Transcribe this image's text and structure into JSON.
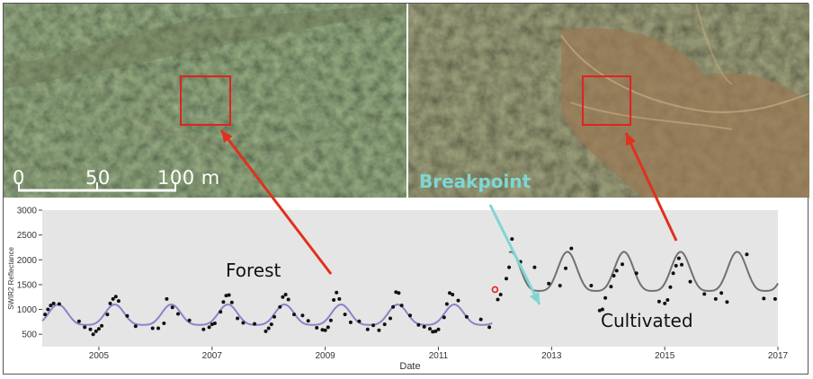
{
  "images": {
    "left_alt": "Satellite image of forest",
    "right_alt": "Satellite image of cultivated land"
  },
  "scale_bar": {
    "labels": [
      "0",
      "50",
      "100 m"
    ]
  },
  "annotations": {
    "forest": "Forest",
    "cultivated": "Cultivated",
    "breakpoint": "Breakpoint"
  },
  "colors": {
    "forest_fit": "#8c82c8",
    "cultivated_fit": "#707070",
    "arrow_red": "#e0311e",
    "arrow_teal": "#7fd6d2",
    "box": "#e0231e",
    "plot_bg": "#e5e5e5"
  },
  "chart_data": {
    "type": "scatter",
    "xlabel": "Date",
    "ylabel": "SWIR2 Reflectance",
    "xlim": [
      2004.0,
      2017.0
    ],
    "ylim": [
      250,
      3000
    ],
    "x_ticks": [
      2005,
      2007,
      2009,
      2011,
      2013,
      2015,
      2017
    ],
    "y_ticks": [
      500,
      1000,
      1500,
      2000,
      2500,
      3000
    ],
    "grid": false,
    "breakpoint_date": 2011.95,
    "series": [
      {
        "kind": "points",
        "points": [
          [
            2004.05,
            900
          ],
          [
            2004.1,
            1000
          ],
          [
            2004.15,
            1080
          ],
          [
            2004.2,
            1120
          ],
          [
            2004.3,
            1110
          ],
          [
            2004.65,
            760
          ],
          [
            2004.75,
            640
          ],
          [
            2004.85,
            600
          ],
          [
            2004.9,
            500
          ],
          [
            2004.95,
            560
          ],
          [
            2005.0,
            610
          ],
          [
            2005.05,
            670
          ],
          [
            2005.15,
            900
          ],
          [
            2005.2,
            1120
          ],
          [
            2005.25,
            1210
          ],
          [
            2005.3,
            1260
          ],
          [
            2005.35,
            1170
          ],
          [
            2005.5,
            870
          ],
          [
            2005.65,
            660
          ],
          [
            2005.95,
            620
          ],
          [
            2006.05,
            620
          ],
          [
            2006.15,
            720
          ],
          [
            2006.2,
            1210
          ],
          [
            2006.3,
            1040
          ],
          [
            2006.4,
            910
          ],
          [
            2006.6,
            780
          ],
          [
            2006.85,
            600
          ],
          [
            2006.95,
            640
          ],
          [
            2007.0,
            700
          ],
          [
            2007.05,
            720
          ],
          [
            2007.15,
            950
          ],
          [
            2007.2,
            1150
          ],
          [
            2007.25,
            1280
          ],
          [
            2007.3,
            1290
          ],
          [
            2007.35,
            1140
          ],
          [
            2007.45,
            820
          ],
          [
            2007.55,
            730
          ],
          [
            2007.75,
            710
          ],
          [
            2007.95,
            560
          ],
          [
            2008.0,
            620
          ],
          [
            2008.05,
            700
          ],
          [
            2008.1,
            850
          ],
          [
            2008.2,
            1050
          ],
          [
            2008.25,
            1250
          ],
          [
            2008.3,
            1300
          ],
          [
            2008.35,
            1200
          ],
          [
            2008.45,
            900
          ],
          [
            2008.6,
            880
          ],
          [
            2008.7,
            770
          ],
          [
            2008.85,
            630
          ],
          [
            2008.95,
            590
          ],
          [
            2009.0,
            580
          ],
          [
            2009.05,
            640
          ],
          [
            2009.1,
            780
          ],
          [
            2009.15,
            1190
          ],
          [
            2009.2,
            1340
          ],
          [
            2009.25,
            1210
          ],
          [
            2009.35,
            900
          ],
          [
            2009.45,
            740
          ],
          [
            2009.6,
            760
          ],
          [
            2009.75,
            600
          ],
          [
            2009.85,
            680
          ],
          [
            2009.95,
            580
          ],
          [
            2010.05,
            700
          ],
          [
            2010.15,
            820
          ],
          [
            2010.2,
            1050
          ],
          [
            2010.25,
            1350
          ],
          [
            2010.3,
            1330
          ],
          [
            2010.35,
            1080
          ],
          [
            2010.5,
            880
          ],
          [
            2010.65,
            690
          ],
          [
            2010.75,
            650
          ],
          [
            2010.85,
            610
          ],
          [
            2010.9,
            550
          ],
          [
            2010.95,
            560
          ],
          [
            2011.0,
            600
          ],
          [
            2011.1,
            840
          ],
          [
            2011.15,
            1110
          ],
          [
            2011.2,
            1330
          ],
          [
            2011.25,
            1300
          ],
          [
            2011.35,
            1180
          ],
          [
            2011.5,
            850
          ],
          [
            2011.75,
            800
          ],
          [
            2011.9,
            640
          ],
          [
            2012.05,
            1200
          ],
          [
            2012.1,
            1300
          ],
          [
            2012.2,
            1620
          ],
          [
            2012.25,
            1850
          ],
          [
            2012.3,
            2420
          ],
          [
            2012.45,
            1960
          ],
          [
            2012.7,
            1850
          ],
          [
            2012.95,
            1520
          ],
          [
            2013.15,
            1480
          ],
          [
            2013.25,
            1830
          ],
          [
            2013.35,
            2230
          ],
          [
            2013.7,
            1480
          ],
          [
            2013.85,
            980
          ],
          [
            2013.9,
            1000
          ],
          [
            2013.95,
            1230
          ],
          [
            2014.05,
            1460
          ],
          [
            2014.1,
            1680
          ],
          [
            2014.15,
            1780
          ],
          [
            2014.25,
            1910
          ],
          [
            2014.5,
            1730
          ],
          [
            2014.9,
            1160
          ],
          [
            2015.0,
            1120
          ],
          [
            2015.05,
            1190
          ],
          [
            2015.1,
            1450
          ],
          [
            2015.15,
            1730
          ],
          [
            2015.2,
            1880
          ],
          [
            2015.25,
            2030
          ],
          [
            2015.3,
            1900
          ],
          [
            2015.45,
            1560
          ],
          [
            2015.7,
            1310
          ],
          [
            2015.9,
            1210
          ],
          [
            2016.0,
            1330
          ],
          [
            2016.1,
            1150
          ],
          [
            2016.45,
            2110
          ],
          [
            2016.75,
            1220
          ],
          [
            2016.95,
            1210
          ]
        ]
      },
      {
        "kind": "fit",
        "name": "forest",
        "x_range": [
          2004.0,
          2011.95
        ],
        "mean": 850,
        "amplitude": 250,
        "peak_phase": 0.28
      },
      {
        "kind": "fit",
        "name": "cultivated",
        "x_range": [
          2012.25,
          2017.0
        ],
        "mean": 1680,
        "amplitude": 480,
        "peak_phase": 0.28
      },
      {
        "kind": "marker",
        "name": "breakpoint",
        "points": [
          [
            2012.0,
            1400
          ]
        ]
      }
    ]
  }
}
